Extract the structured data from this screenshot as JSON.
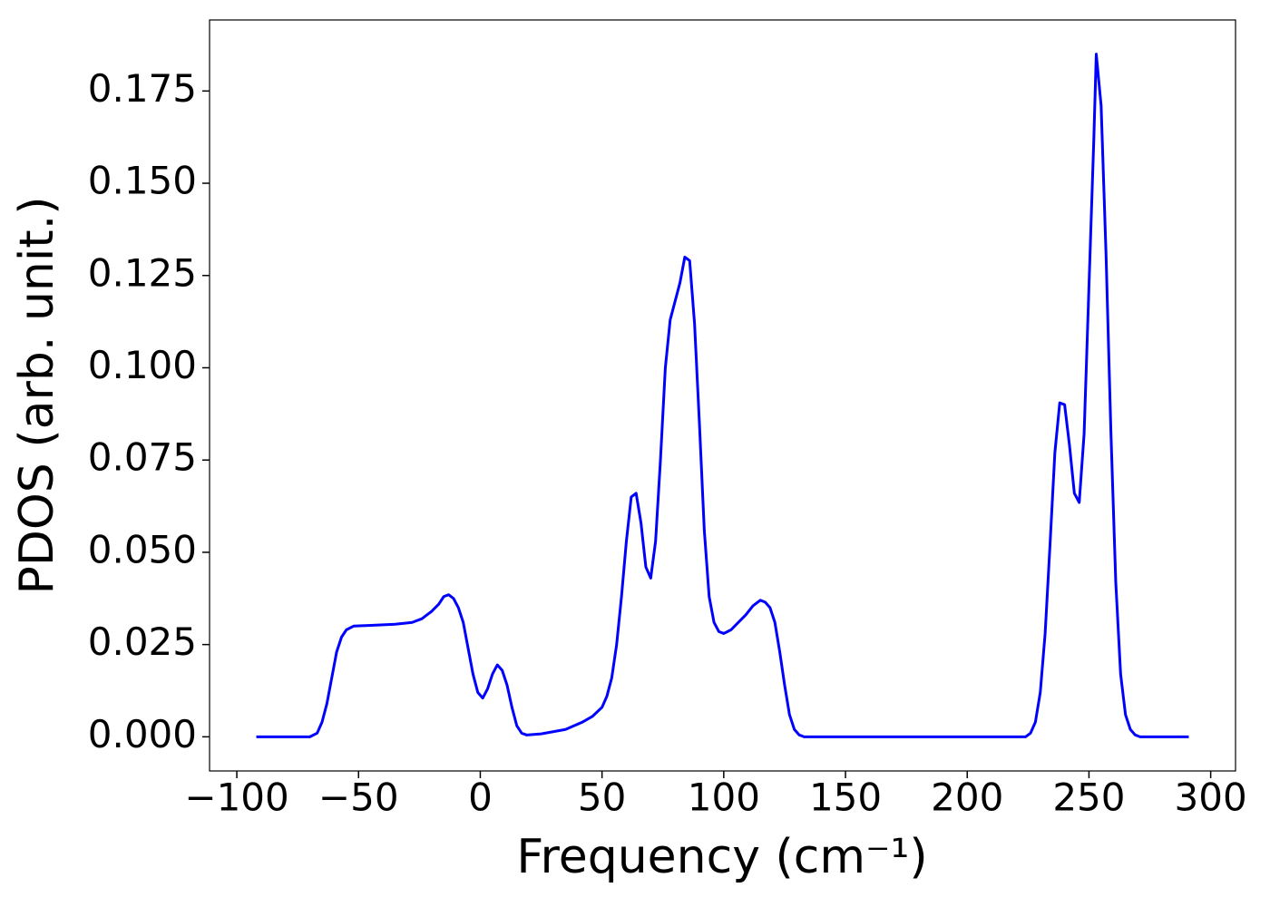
{
  "chart_data": {
    "type": "line",
    "x_label": "Frequency (cm⁻¹)",
    "y_label": "PDOS (arb. unit.)",
    "xlim": [
      -111.2,
      310.2
    ],
    "ylim": [
      -0.00925,
      0.19425
    ],
    "xticks": [
      {
        "value": -100,
        "label": "−100"
      },
      {
        "value": -50,
        "label": "−50"
      },
      0,
      50,
      100,
      150,
      200,
      250,
      300
    ],
    "yticks": [
      {
        "value": 0,
        "label": "0.000"
      },
      {
        "value": 0.025,
        "label": "0.025"
      },
      {
        "value": 0.05,
        "label": "0.050"
      },
      {
        "value": 0.075,
        "label": "0.075"
      },
      {
        "value": 0.1,
        "label": "0.100"
      },
      {
        "value": 0.125,
        "label": "0.125"
      },
      {
        "value": 0.15,
        "label": "0.150"
      },
      {
        "value": 0.175,
        "label": "0.175"
      }
    ],
    "x": [
      -92,
      -70,
      -67,
      -65,
      -63,
      -61,
      -59,
      -57,
      -55,
      -52,
      -45,
      -35,
      -28,
      -24,
      -20,
      -17,
      -15,
      -13,
      -11,
      -9,
      -7,
      -5,
      -3,
      -1,
      1,
      3,
      5,
      7,
      9,
      11,
      13,
      15,
      17,
      19,
      25,
      35,
      42,
      46,
      50,
      52,
      54,
      56,
      58,
      60,
      62,
      64,
      66,
      68,
      70,
      72,
      74,
      76,
      78,
      80,
      82,
      84,
      86,
      88,
      90,
      92,
      94,
      96,
      98,
      100,
      103,
      106,
      109,
      112,
      115,
      117,
      119,
      121,
      123,
      125,
      127,
      129,
      131,
      133,
      224,
      226,
      228,
      230,
      232,
      234,
      236,
      238,
      240,
      242,
      244,
      246,
      248,
      250,
      252,
      253,
      255,
      257,
      259,
      261,
      263,
      265,
      267,
      269,
      271,
      291
    ],
    "series": [
      {
        "name": "PDOS",
        "color": "#0000ff",
        "values": [
          0,
          0,
          0.001,
          0.004,
          0.009,
          0.016,
          0.023,
          0.027,
          0.029,
          0.03,
          0.0302,
          0.0305,
          0.031,
          0.032,
          0.034,
          0.036,
          0.038,
          0.0385,
          0.0375,
          0.035,
          0.031,
          0.024,
          0.017,
          0.012,
          0.0105,
          0.013,
          0.017,
          0.0195,
          0.018,
          0.014,
          0.008,
          0.003,
          0.001,
          0.0005,
          0.0008,
          0.002,
          0.004,
          0.0055,
          0.008,
          0.011,
          0.016,
          0.025,
          0.038,
          0.053,
          0.065,
          0.066,
          0.058,
          0.046,
          0.043,
          0.053,
          0.075,
          0.1,
          0.113,
          0.118,
          0.123,
          0.13,
          0.129,
          0.112,
          0.085,
          0.056,
          0.038,
          0.031,
          0.0285,
          0.028,
          0.029,
          0.031,
          0.033,
          0.0355,
          0.037,
          0.0365,
          0.035,
          0.031,
          0.023,
          0.014,
          0.006,
          0.002,
          0.0005,
          0,
          0,
          0.001,
          0.004,
          0.012,
          0.028,
          0.052,
          0.077,
          0.0905,
          0.09,
          0.079,
          0.066,
          0.0635,
          0.082,
          0.122,
          0.162,
          0.185,
          0.171,
          0.131,
          0.083,
          0.042,
          0.017,
          0.006,
          0.002,
          0.0005,
          0,
          0
        ]
      }
    ]
  }
}
